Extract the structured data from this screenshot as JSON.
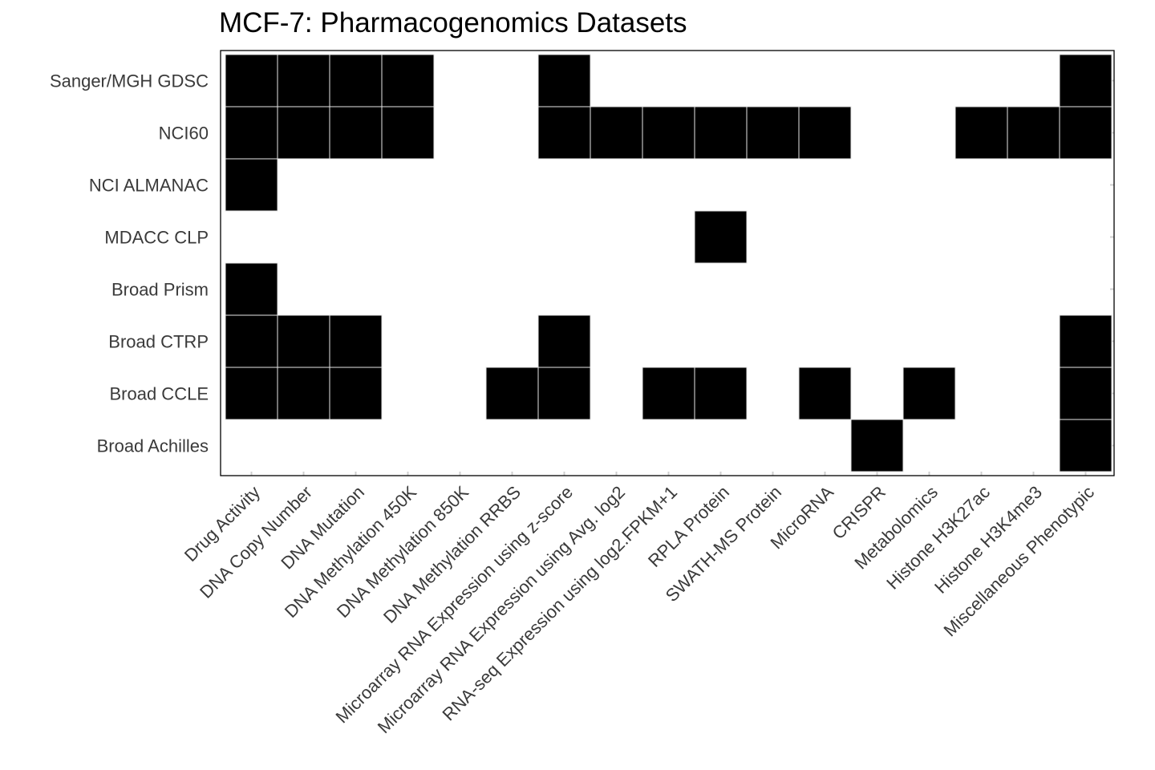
{
  "chart_data": {
    "type": "heatmap",
    "title": "MCF-7: Pharmacogenomics Datasets",
    "rows": [
      "Sanger/MGH GDSC",
      "NCI60",
      "NCI ALMANAC",
      "MDACC CLP",
      "Broad Prism",
      "Broad CTRP",
      "Broad CCLE",
      "Broad Achilles"
    ],
    "columns": [
      "Drug Activity",
      "DNA Copy Number",
      "DNA Mutation",
      "DNA Methylation 450K",
      "DNA Methylation 850K",
      "DNA Methylation RRBS",
      "Microarray RNA Expression using z-score",
      "Microarray RNA Expression using Avg. log2",
      "RNA-seq Expression using log2.FPKM+1",
      "RPLA Protein",
      "SWATH-MS Protein",
      "MicroRNA",
      "CRISPR",
      "Metabolomics",
      "Histone H3K27ac",
      "Histone H3K4me3",
      "Miscellaneous Phenotypic"
    ],
    "values": [
      [
        1,
        1,
        1,
        1,
        0,
        0,
        1,
        0,
        0,
        0,
        0,
        0,
        0,
        0,
        0,
        0,
        1
      ],
      [
        1,
        1,
        1,
        1,
        0,
        0,
        1,
        1,
        1,
        1,
        1,
        1,
        0,
        0,
        1,
        1,
        1
      ],
      [
        1,
        0,
        0,
        0,
        0,
        0,
        0,
        0,
        0,
        0,
        0,
        0,
        0,
        0,
        0,
        0,
        0
      ],
      [
        0,
        0,
        0,
        0,
        0,
        0,
        0,
        0,
        0,
        1,
        0,
        0,
        0,
        0,
        0,
        0,
        0
      ],
      [
        1,
        0,
        0,
        0,
        0,
        0,
        0,
        0,
        0,
        0,
        0,
        0,
        0,
        0,
        0,
        0,
        0
      ],
      [
        1,
        1,
        1,
        0,
        0,
        0,
        1,
        0,
        0,
        0,
        0,
        0,
        0,
        0,
        0,
        0,
        1
      ],
      [
        1,
        1,
        1,
        0,
        0,
        1,
        1,
        0,
        1,
        1,
        0,
        1,
        0,
        1,
        0,
        0,
        1
      ],
      [
        0,
        0,
        0,
        0,
        0,
        0,
        0,
        0,
        0,
        0,
        0,
        0,
        1,
        0,
        0,
        0,
        1
      ]
    ],
    "fill_color": "#000000",
    "empty_color": "#ffffff",
    "grid_line_color": "#e6e6e6",
    "legend": "none"
  }
}
